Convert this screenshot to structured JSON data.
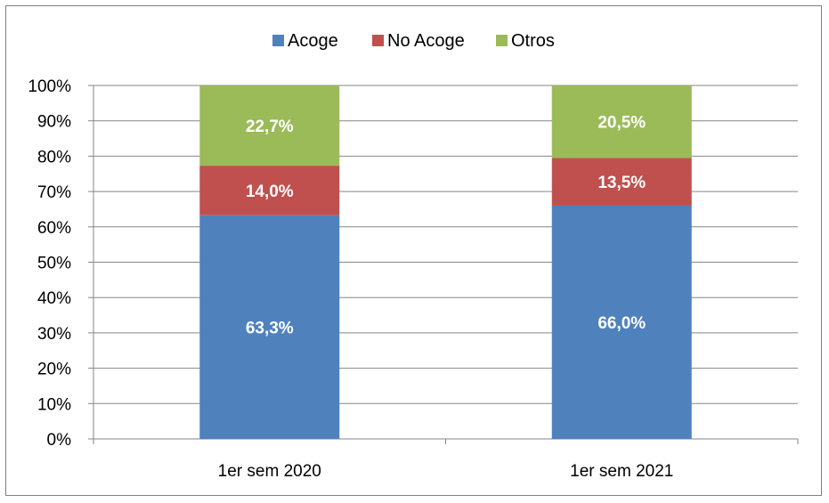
{
  "chart_data": {
    "type": "bar",
    "stacked": true,
    "categories": [
      "1er sem 2020",
      "1er sem 2021"
    ],
    "series": [
      {
        "name": "Acoge",
        "values": [
          63.3,
          66.0
        ],
        "labels": [
          "63,3%",
          "66,0%"
        ],
        "color": "#4f81bd"
      },
      {
        "name": "No Acoge",
        "values": [
          14.0,
          13.5
        ],
        "labels": [
          "14,0%",
          "13,5%"
        ],
        "color": "#c0504d"
      },
      {
        "name": "Otros",
        "values": [
          22.7,
          20.5
        ],
        "labels": [
          "22,7%",
          "20,5%"
        ],
        "color": "#9bbb59"
      }
    ],
    "yticks": [
      "0%",
      "10%",
      "20%",
      "30%",
      "40%",
      "50%",
      "60%",
      "70%",
      "80%",
      "90%",
      "100%"
    ],
    "ylim": [
      0,
      100
    ],
    "grid": true,
    "legend_position": "top"
  }
}
